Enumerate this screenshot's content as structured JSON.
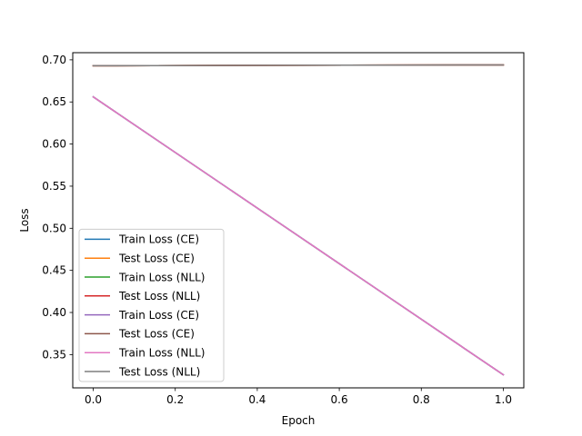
{
  "chart_data": {
    "type": "line",
    "title": "",
    "xlabel": "Epoch",
    "ylabel": "Loss",
    "xlim": [
      -0.05,
      1.05
    ],
    "ylim": [
      0.3105,
      0.7085
    ],
    "xticks": [
      0.0,
      0.2,
      0.4,
      0.6,
      0.8,
      1.0
    ],
    "xtick_labels": [
      "0.0",
      "0.2",
      "0.4",
      "0.6",
      "0.8",
      "1.0"
    ],
    "yticks": [
      0.35,
      0.4,
      0.45,
      0.5,
      0.55,
      0.6,
      0.65,
      0.7
    ],
    "ytick_labels": [
      "0.35",
      "0.40",
      "0.45",
      "0.50",
      "0.55",
      "0.60",
      "0.65",
      "0.70"
    ],
    "grid": false,
    "legend_position": "lower-left",
    "x": [
      0,
      1
    ],
    "series": [
      {
        "name": "Train Loss (CE)",
        "color": "#1f77b4",
        "values": [
          0.656,
          0.326
        ]
      },
      {
        "name": "Test Loss (CE)",
        "color": "#ff7f0e",
        "values": [
          0.693,
          0.694
        ]
      },
      {
        "name": "Train Loss (NLL)",
        "color": "#2ca02c",
        "values": [
          0.656,
          0.326
        ]
      },
      {
        "name": "Test Loss (NLL)",
        "color": "#d62728",
        "values": [
          0.693,
          0.694
        ]
      },
      {
        "name": "Train Loss (CE)",
        "color": "#9467bd",
        "values": [
          0.656,
          0.326
        ]
      },
      {
        "name": "Test Loss (CE)",
        "color": "#8c564b",
        "values": [
          0.693,
          0.694
        ]
      },
      {
        "name": "Train Loss (NLL)",
        "color": "#e377c2",
        "values": [
          0.656,
          0.326
        ]
      },
      {
        "name": "Test Loss (NLL)",
        "color": "#7f7f7f",
        "values": [
          0.693,
          0.694
        ]
      }
    ]
  }
}
